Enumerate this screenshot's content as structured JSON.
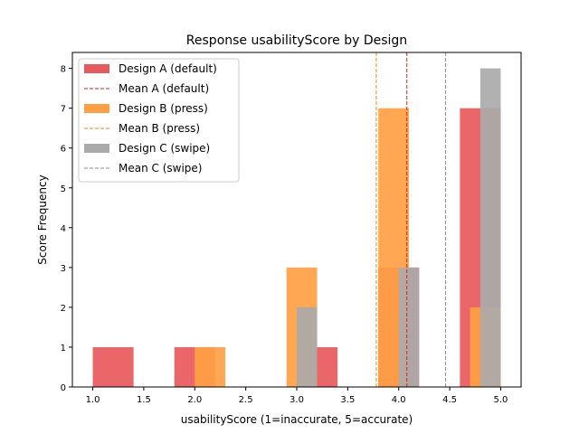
{
  "chart_data": {
    "type": "bar",
    "title": "Response usabilityScore by Design",
    "xlabel": "usabilityScore (1=inaccurate, 5=accurate)",
    "ylabel": "Score Frequency",
    "xlim": [
      0.8,
      5.2
    ],
    "ylim": [
      0,
      8.4
    ],
    "xticks": [
      "1.0",
      "1.5",
      "2.0",
      "2.5",
      "3.0",
      "3.5",
      "4.0",
      "4.5",
      "5.0"
    ],
    "yticks": [
      "0",
      "1",
      "2",
      "3",
      "4",
      "5",
      "6",
      "7",
      "8"
    ],
    "legend_position": "upper-left",
    "grid": false,
    "series": [
      {
        "name": "Design A (default)",
        "color": "#e8595c",
        "bars": [
          {
            "x0": 1.0,
            "x1": 1.4,
            "value": 1
          },
          {
            "x0": 1.8,
            "x1": 2.2,
            "value": 1
          },
          {
            "x0": 3.0,
            "x1": 3.4,
            "value": 1
          },
          {
            "x0": 3.8,
            "x1": 4.2,
            "value": 3
          },
          {
            "x0": 4.6,
            "x1": 5.0,
            "value": 7
          }
        ],
        "mean": 4.08,
        "mean_label": "Mean A (default)",
        "mean_color": "#e31a1c"
      },
      {
        "name": "Design B (press)",
        "color": "#ff9f43",
        "bars": [
          {
            "x0": 2.0,
            "x1": 2.3,
            "value": 1
          },
          {
            "x0": 2.9,
            "x1": 3.2,
            "value": 3
          },
          {
            "x0": 3.8,
            "x1": 4.1,
            "value": 7
          },
          {
            "x0": 4.7,
            "x1": 5.0,
            "value": 2
          }
        ],
        "mean": 3.78,
        "mean_label": "Mean B (press)",
        "mean_color": "#ff7f0e"
      },
      {
        "name": "Design C (swipe)",
        "color": "#aaaaaa",
        "bars": [
          {
            "x0": 3.0,
            "x1": 3.2,
            "value": 2
          },
          {
            "x0": 4.0,
            "x1": 4.2,
            "value": 3
          },
          {
            "x0": 4.8,
            "x1": 5.0,
            "value": 8
          }
        ],
        "mean": 4.46,
        "mean_label": "Mean C (swipe)",
        "mean_color": "#8c8c8c"
      }
    ]
  }
}
